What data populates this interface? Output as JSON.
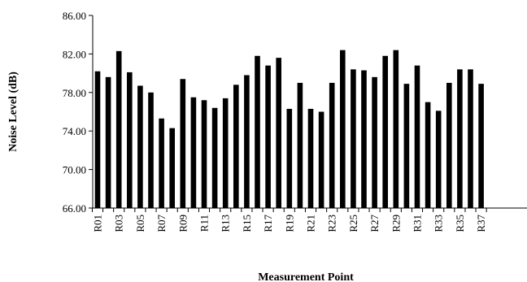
{
  "chart_data": {
    "type": "bar",
    "title": "",
    "xlabel": "Measurement Point",
    "ylabel": "Noise Level (dB)",
    "ylim": [
      66,
      86
    ],
    "yticks": [
      "66.00",
      "70.00",
      "74.00",
      "78.00",
      "82.00",
      "86.00"
    ],
    "grid": false,
    "legend": "none",
    "bar_color": "#000000",
    "categories": [
      "R01",
      "R02",
      "R03",
      "R04",
      "R05",
      "R06",
      "R07",
      "R08",
      "R09",
      "R10",
      "R11",
      "R12",
      "R13",
      "R14",
      "R15",
      "R16",
      "R17",
      "R18",
      "R19",
      "R20",
      "R21",
      "R22",
      "R23",
      "R24",
      "R25",
      "R26",
      "R27",
      "R28",
      "R29",
      "R30",
      "R31",
      "R32",
      "R33",
      "R34",
      "R35",
      "R36",
      "R37"
    ],
    "tick_labels": [
      "R01",
      "R03",
      "R05",
      "R07",
      "R09",
      "R11",
      "R13",
      "R15",
      "R17",
      "R19",
      "R21",
      "R23",
      "R25",
      "R27",
      "R29",
      "R31",
      "R33",
      "R35",
      "R37"
    ],
    "values": [
      80.2,
      79.6,
      82.3,
      80.1,
      78.7,
      78.0,
      75.3,
      74.3,
      79.4,
      77.5,
      77.2,
      76.4,
      77.4,
      78.8,
      79.8,
      81.8,
      80.8,
      81.6,
      76.3,
      79.0,
      76.3,
      76.0,
      79.0,
      82.4,
      80.4,
      80.3,
      79.6,
      81.8,
      82.4,
      78.9,
      80.8,
      77.0,
      76.1,
      79.0,
      80.4,
      80.4,
      78.9
    ]
  }
}
